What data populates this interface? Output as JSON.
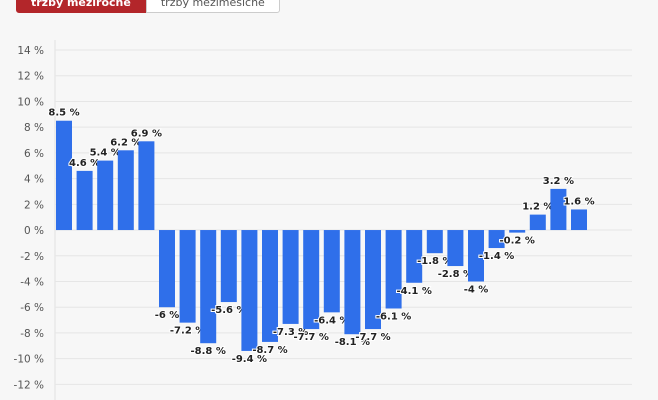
{
  "tabs": [
    {
      "label": "tržby meziročně",
      "active": true
    },
    {
      "label": "tržby meziměsíčně",
      "active": false
    }
  ],
  "chart_data": {
    "type": "bar",
    "title": "",
    "xlabel": "",
    "ylabel": "",
    "ylim": [
      -12,
      14
    ],
    "yticks": [
      14,
      12,
      10,
      8,
      6,
      4,
      2,
      0,
      -2,
      -4,
      -6,
      -8,
      -10,
      -12
    ],
    "tick_suffix": " %",
    "grid": true,
    "bar_color": "#2f6fea",
    "values": [
      8.5,
      4.6,
      5.4,
      6.2,
      6.9,
      -6,
      -7.2,
      -8.8,
      -5.6,
      -9.4,
      -8.7,
      -7.3,
      -7.7,
      -6.4,
      -8.1,
      -7.7,
      -6.1,
      -4.1,
      -1.8,
      -2.8,
      -4,
      -1.4,
      -0.2,
      1.2,
      3.2,
      1.6
    ],
    "labels": [
      "8.5 %",
      "4.6 %",
      "5.4 %",
      "6.2 %",
      "6.9 %",
      "-6 %",
      "-7.2 %",
      "-8.8 %",
      "-5.6 %",
      "-9.4 %",
      "-8.7 %",
      "-7.3 %",
      "-7.7 %",
      "-6.4 %",
      "-8.1 %",
      "-7.7 %",
      "-6.1 %",
      "-4.1 %",
      "-1.8 %",
      "-2.8 %",
      "-4 %",
      "-1.4 %",
      "-0.2 %",
      "1.2 %",
      "3.2 %",
      "1.6 %"
    ]
  }
}
